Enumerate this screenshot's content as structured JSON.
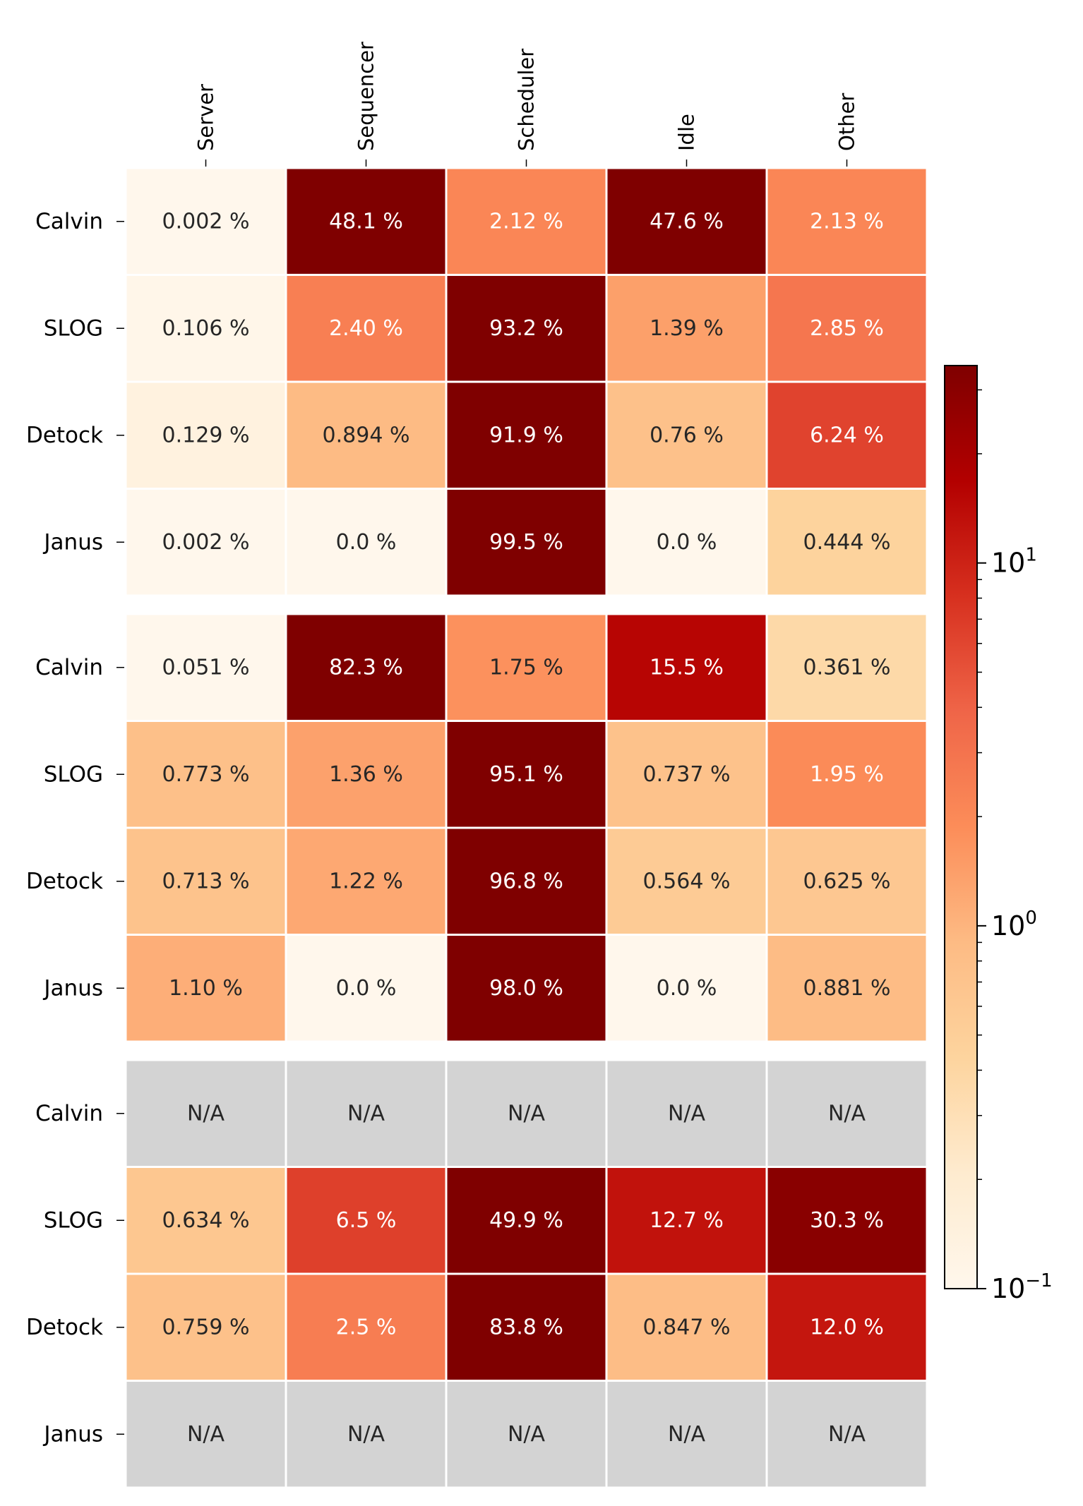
{
  "chart_data": {
    "type": "heatmap",
    "columns": [
      "Server",
      "Sequencer",
      "Scheduler",
      "Idle",
      "Other"
    ],
    "panels": [
      {
        "rows": [
          "Calvin",
          "SLOG",
          "Detock",
          "Janus"
        ],
        "values": [
          [
            0.002,
            48.1,
            2.12,
            47.6,
            2.13
          ],
          [
            0.106,
            2.4,
            93.2,
            1.39,
            2.85
          ],
          [
            0.129,
            0.894,
            91.9,
            0.76,
            6.24
          ],
          [
            0.002,
            0.0,
            99.5,
            0.0,
            0.444
          ]
        ],
        "labels": [
          [
            "0.002 %",
            "48.1 %",
            "2.12 %",
            "47.6 %",
            "2.13 %"
          ],
          [
            "0.106 %",
            "2.40 %",
            "93.2 %",
            "1.39 %",
            "2.85 %"
          ],
          [
            "0.129 %",
            "0.894 %",
            "91.9 %",
            "0.76 %",
            "6.24 %"
          ],
          [
            "0.002 %",
            "0.0 %",
            "99.5 %",
            "0.0 %",
            "0.444 %"
          ]
        ]
      },
      {
        "rows": [
          "Calvin",
          "SLOG",
          "Detock",
          "Janus"
        ],
        "values": [
          [
            0.051,
            82.3,
            1.75,
            15.5,
            0.361
          ],
          [
            0.773,
            1.36,
            95.1,
            0.737,
            1.95
          ],
          [
            0.713,
            1.22,
            96.8,
            0.564,
            0.625
          ],
          [
            1.1,
            0.0,
            98.0,
            0.0,
            0.881
          ]
        ],
        "labels": [
          [
            "0.051 %",
            "82.3 %",
            "1.75 %",
            "15.5 %",
            "0.361 %"
          ],
          [
            "0.773 %",
            "1.36 %",
            "95.1 %",
            "0.737 %",
            "1.95 %"
          ],
          [
            "0.713 %",
            "1.22 %",
            "96.8 %",
            "0.564 %",
            "0.625 %"
          ],
          [
            "1.10 %",
            "0.0 %",
            "98.0 %",
            "0.0 %",
            "0.881 %"
          ]
        ]
      },
      {
        "rows": [
          "Calvin",
          "SLOG",
          "Detock",
          "Janus"
        ],
        "values": [
          [
            null,
            null,
            null,
            null,
            null
          ],
          [
            0.634,
            6.5,
            49.9,
            12.7,
            30.3
          ],
          [
            0.759,
            2.5,
            83.8,
            0.847,
            12.0
          ],
          [
            null,
            null,
            null,
            null,
            null
          ]
        ],
        "labels": [
          [
            "N/A",
            "N/A",
            "N/A",
            "N/A",
            "N/A"
          ],
          [
            "0.634 %",
            "6.5 %",
            "49.9 %",
            "12.7 %",
            "30.3 %"
          ],
          [
            "0.759 %",
            "2.5 %",
            "83.8 %",
            "0.847 %",
            "12.0 %"
          ],
          [
            "N/A",
            "N/A",
            "N/A",
            "N/A",
            "N/A"
          ]
        ]
      }
    ],
    "colorbar": {
      "scale": "log",
      "colormap": "OrRd",
      "range": [
        0.1,
        35
      ],
      "ticks": [
        {
          "value": 0.1,
          "base": "10",
          "exp": "−1"
        },
        {
          "value": 1,
          "base": "10",
          "exp": "0"
        },
        {
          "value": 10,
          "base": "10",
          "exp": "1"
        }
      ]
    },
    "na_color": "#d3d3d3",
    "grid": false
  }
}
